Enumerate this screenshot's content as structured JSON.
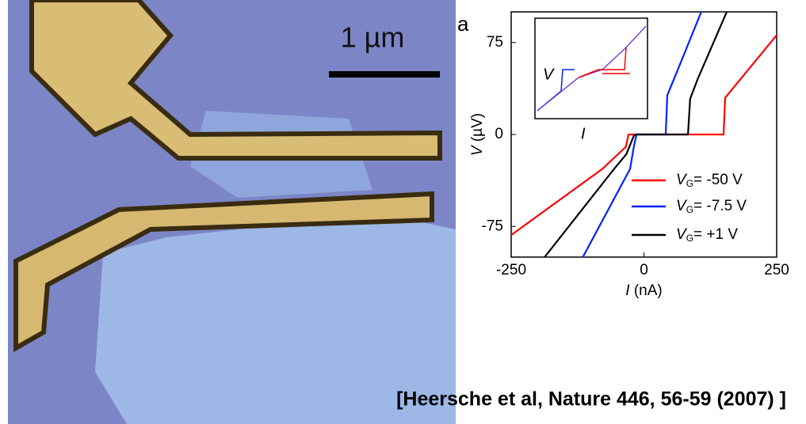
{
  "scale_bar": "1 µm",
  "panel_label": "a",
  "citation": "[Heersche et al, Nature 446, 56-59 (2007) ]",
  "inset": {
    "x_label": "I",
    "y_label": "V"
  },
  "chart_data": {
    "type": "line",
    "x_label": {
      "symbol": "I",
      "text": " (nA)"
    },
    "y_label": {
      "symbol": "V",
      "text": " (µV)"
    },
    "xlim": [
      -250,
      250
    ],
    "xticks": [
      -250,
      0,
      250
    ],
    "ylim": [
      -100,
      100
    ],
    "yticks": [
      -75,
      0,
      75
    ],
    "series": [
      {
        "label": {
          "symbol": "V",
          "subscript": "G",
          "text": "= -50 V"
        },
        "color": "#ff0000",
        "x": [
          -250,
          -78,
          -34,
          -29,
          150,
          153,
          250
        ],
        "values": [
          -82,
          -28,
          -10,
          0,
          0,
          30,
          81
        ]
      },
      {
        "label": {
          "symbol": "V",
          "subscript": "G",
          "text": "= -7.5 V"
        },
        "color": "#0022ff",
        "x": [
          -115,
          -26,
          -19,
          -14,
          41,
          44,
          63,
          108
        ],
        "values": [
          -100,
          -28,
          -10,
          0,
          0,
          32,
          52,
          100
        ]
      },
      {
        "label": {
          "symbol": "V",
          "subscript": "G",
          "text": "= +1 V"
        },
        "color": "#000000",
        "x": [
          -187,
          -56,
          -33,
          -19,
          -14,
          83,
          87,
          101,
          156
        ],
        "values": [
          -100,
          -28,
          -16,
          -1,
          0,
          0,
          29,
          45,
          100
        ]
      }
    ]
  }
}
